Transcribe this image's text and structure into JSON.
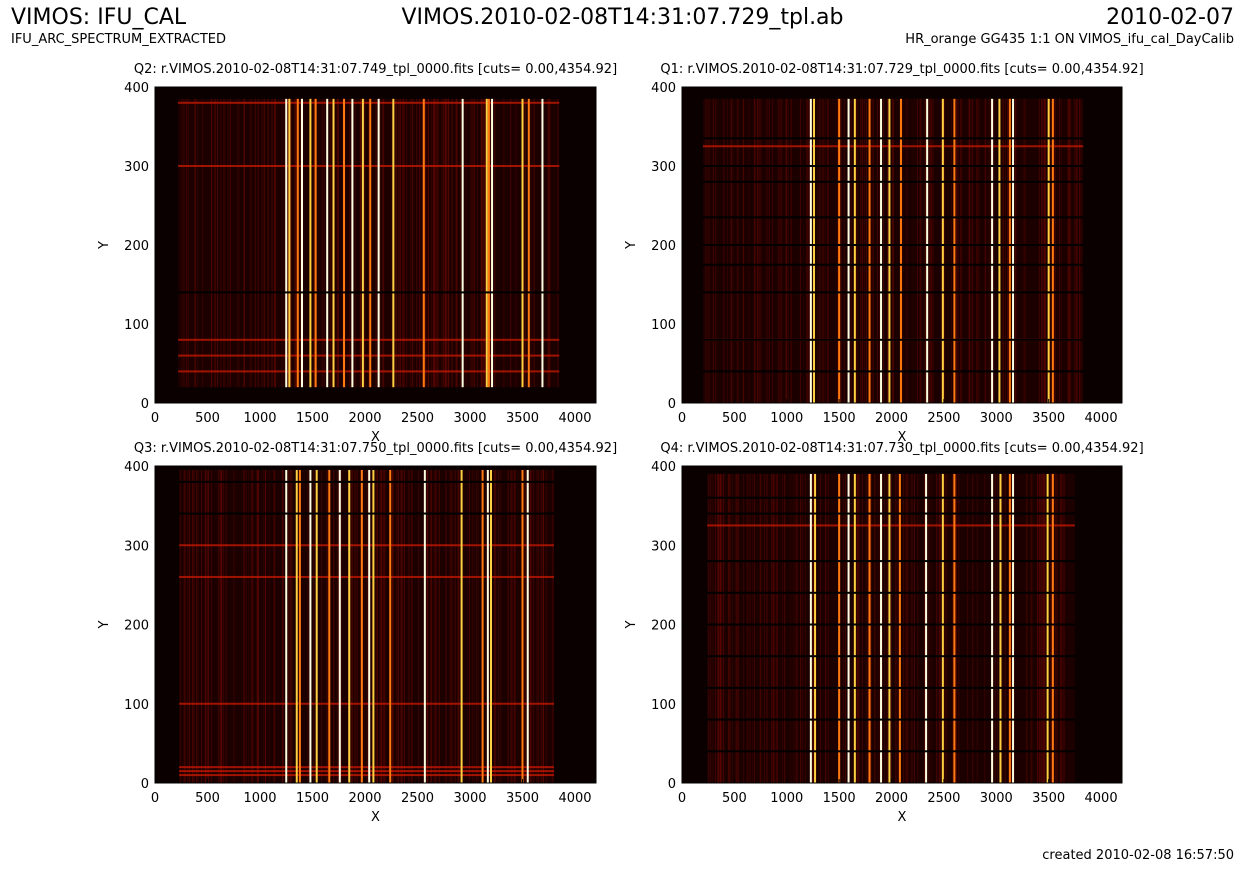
{
  "header": {
    "title_left": "VIMOS: IFU_CAL",
    "subtitle_left": "IFU_ARC_SPECTRUM_EXTRACTED",
    "title_center": "VIMOS.2010-02-08T14:31:07.729_tpl.ab",
    "title_right": "2010-02-07",
    "subtitle_right": "HR_orange GG435 1:1 ON VIMOS_ifu_cal_DayCalib"
  },
  "footer": {
    "created": "created 2010-02-08 16:57:50"
  },
  "chart_data": [
    {
      "type": "heatmap",
      "title": "Q2: r.VIMOS.2010-02-08T14:31:07.749_tpl_0000.fits [cuts= 0.00,4354.92]",
      "xlabel": "X",
      "ylabel": "Y",
      "xlim": [
        0,
        4200
      ],
      "ylim": [
        0,
        400
      ],
      "xticks": [
        0,
        500,
        1000,
        1500,
        2000,
        2500,
        3000,
        3500,
        4000
      ],
      "yticks": [
        0,
        100,
        200,
        300,
        400
      ],
      "cuts": [
        0.0,
        4354.92
      ],
      "colormap": "hot",
      "data_extent": {
        "x": [
          220,
          3850
        ],
        "y": [
          20,
          385
        ]
      },
      "bright_columns_x": [
        1250,
        1280,
        1360,
        1400,
        1480,
        1530,
        1640,
        1700,
        1800,
        1880,
        1980,
        2050,
        2130,
        2270,
        2560,
        2930,
        3160,
        3180,
        3210,
        3500,
        3560,
        3690
      ],
      "bright_rows_y": [
        40,
        60,
        80,
        300,
        380
      ],
      "dark_rows_y": [
        140
      ]
    },
    {
      "type": "heatmap",
      "title": "Q1: r.VIMOS.2010-02-08T14:31:07.729_tpl_0000.fits [cuts= 0.00,4354.92]",
      "xlabel": "X",
      "ylabel": "Y",
      "xlim": [
        0,
        4200
      ],
      "ylim": [
        0,
        400
      ],
      "xticks": [
        0,
        500,
        1000,
        1500,
        2000,
        2500,
        3000,
        3500,
        4000
      ],
      "yticks": [
        0,
        100,
        200,
        300,
        400
      ],
      "cuts": [
        0.0,
        4354.92
      ],
      "colormap": "hot",
      "data_extent": {
        "x": [
          200,
          3830
        ],
        "y": [
          0,
          385
        ]
      },
      "bright_columns_x": [
        1230,
        1260,
        1500,
        1590,
        1650,
        1790,
        1900,
        1980,
        2090,
        2340,
        2490,
        2600,
        2960,
        3030,
        3130,
        3160,
        3500,
        3540
      ],
      "bright_rows_y": [
        80,
        325
      ],
      "dark_rows_y": [
        40,
        80,
        140,
        175,
        200,
        235,
        280,
        300,
        335
      ]
    },
    {
      "type": "heatmap",
      "title": "Q3: r.VIMOS.2010-02-08T14:31:07.750_tpl_0000.fits [cuts= 0.00,4354.92]",
      "xlabel": "X",
      "ylabel": "Y",
      "xlim": [
        0,
        4200
      ],
      "ylim": [
        0,
        400
      ],
      "xticks": [
        0,
        500,
        1000,
        1500,
        2000,
        2500,
        3000,
        3500,
        4000
      ],
      "yticks": [
        0,
        100,
        200,
        300,
        400
      ],
      "cuts": [
        0.0,
        4354.92
      ],
      "colormap": "hot",
      "data_extent": {
        "x": [
          230,
          3800
        ],
        "y": [
          0,
          395
        ]
      },
      "bright_columns_x": [
        1250,
        1350,
        1380,
        1480,
        1540,
        1660,
        1760,
        1850,
        1970,
        2040,
        2080,
        2240,
        2570,
        2920,
        3120,
        3170,
        3200,
        3500,
        3550
      ],
      "bright_rows_y": [
        10,
        15,
        20,
        100,
        260,
        300
      ],
      "dark_rows_y": [
        340,
        380
      ]
    },
    {
      "type": "heatmap",
      "title": "Q4: r.VIMOS.2010-02-08T14:31:07.730_tpl_0000.fits [cuts= 0.00,4354.92]",
      "xlabel": "X",
      "ylabel": "Y",
      "xlim": [
        0,
        4200
      ],
      "ylim": [
        0,
        400
      ],
      "xticks": [
        0,
        500,
        1000,
        1500,
        2000,
        2500,
        3000,
        3500,
        4000
      ],
      "yticks": [
        0,
        100,
        200,
        300,
        400
      ],
      "cuts": [
        0.0,
        4354.92
      ],
      "colormap": "hot",
      "data_extent": {
        "x": [
          240,
          3750
        ],
        "y": [
          0,
          390
        ]
      },
      "bright_columns_x": [
        1230,
        1270,
        1500,
        1590,
        1650,
        1790,
        1900,
        1980,
        2080,
        2330,
        2490,
        2600,
        2960,
        3040,
        3130,
        3160,
        3490,
        3540
      ],
      "bright_rows_y": [
        325
      ],
      "dark_rows_y": [
        40,
        80,
        120,
        160,
        200,
        240,
        280,
        340,
        360
      ]
    }
  ]
}
